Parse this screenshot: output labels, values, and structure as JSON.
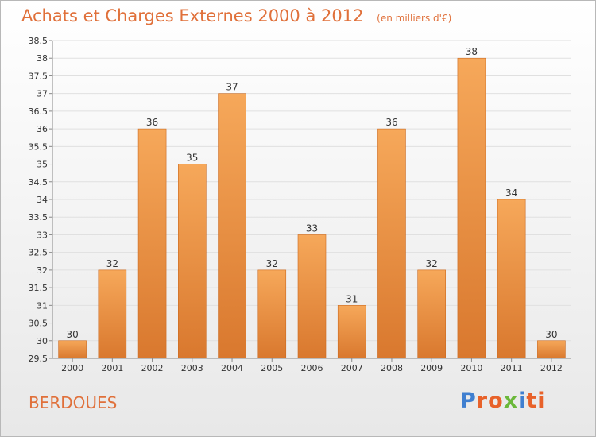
{
  "header": {
    "title": "Achats et Charges Externes 2000 à 2012",
    "subtitle": "(en milliers d'€)"
  },
  "footer": {
    "place": "BERDOUES",
    "logo_text": "Proxiti",
    "logo_colors": [
      "#3f7fd0",
      "#e8622a",
      "#e8622a",
      "#6bb83a",
      "#3f7fd0",
      "#e8622a",
      "#e8622a"
    ]
  },
  "colors": {
    "bar_top": "#f6a85a",
    "bar_bottom": "#d9782e",
    "bar_stroke": "#cc6a20",
    "grid": "#e0e0e0",
    "background_top": "#ffffff",
    "background_bottom": "#e8e8e8",
    "title": "#e0703a"
  },
  "chart_data": {
    "type": "bar",
    "categories": [
      "2000",
      "2001",
      "2002",
      "2003",
      "2004",
      "2005",
      "2006",
      "2007",
      "2008",
      "2009",
      "2010",
      "2011",
      "2012"
    ],
    "values": [
      30,
      32,
      36,
      35,
      37,
      32,
      33,
      31,
      36,
      32,
      38,
      34,
      30
    ],
    "data_labels": [
      "30",
      "32",
      "36",
      "35",
      "37",
      "32",
      "33",
      "31",
      "36",
      "32",
      "38",
      "34",
      "30"
    ],
    "ylim": [
      29.5,
      38.5
    ],
    "yticks": [
      "29.5",
      "30",
      "30.5",
      "31",
      "31.5",
      "32",
      "32.5",
      "33",
      "33.5",
      "34",
      "34.5",
      "35",
      "35.5",
      "36",
      "36.5",
      "37",
      "37.5",
      "38",
      "38.5"
    ],
    "grid": true,
    "xlabel": "",
    "ylabel": ""
  }
}
